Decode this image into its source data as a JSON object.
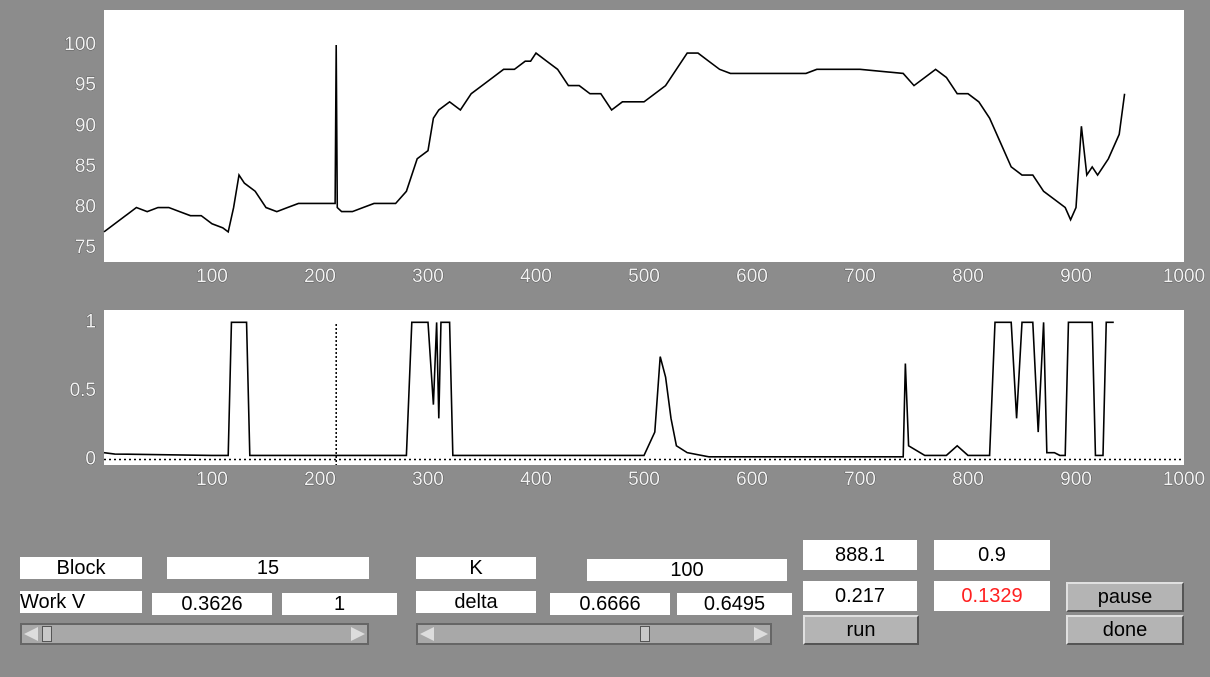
{
  "chart_data": [
    {
      "type": "line",
      "x": [
        0,
        10,
        20,
        30,
        40,
        50,
        60,
        70,
        80,
        90,
        100,
        110,
        115,
        120,
        125,
        130,
        140,
        150,
        160,
        170,
        180,
        190,
        200,
        210,
        214,
        215,
        216,
        220,
        230,
        240,
        250,
        260,
        270,
        280,
        290,
        300,
        305,
        310,
        320,
        330,
        340,
        350,
        360,
        370,
        380,
        390,
        395,
        400,
        410,
        420,
        430,
        440,
        450,
        460,
        470,
        480,
        490,
        500,
        510,
        520,
        530,
        540,
        550,
        560,
        570,
        580,
        600,
        650,
        660,
        700,
        740,
        750,
        760,
        770,
        780,
        790,
        800,
        810,
        820,
        830,
        840,
        850,
        860,
        870,
        880,
        890,
        895,
        900,
        905,
        910,
        915,
        920,
        925,
        930,
        940,
        945
      ],
      "values": [
        77,
        78,
        79,
        80,
        79.5,
        80,
        80,
        79.5,
        79,
        79,
        78,
        77.5,
        77,
        80,
        84,
        83,
        82,
        80,
        79.5,
        80,
        80.5,
        80.5,
        80.5,
        80.5,
        80.5,
        100,
        80,
        79.5,
        79.5,
        80,
        80.5,
        80.5,
        80.5,
        82,
        86,
        87,
        91,
        92,
        93,
        92,
        94,
        95,
        96,
        97,
        97,
        98,
        98,
        99,
        98,
        97,
        95,
        95,
        94,
        94,
        92,
        93,
        93,
        93,
        94,
        95,
        97,
        99,
        99,
        98,
        97,
        96.5,
        96.5,
        96.5,
        97,
        97,
        96.5,
        95,
        96,
        97,
        96,
        94,
        94,
        93,
        91,
        88,
        85,
        84,
        84,
        82,
        81,
        80,
        78.5,
        80,
        90,
        84,
        85,
        84,
        85,
        86,
        89,
        94
      ],
      "color": "#000000",
      "xlim": [
        0,
        1000
      ],
      "ylim": [
        73.3,
        104.3
      ],
      "xticks": [
        100,
        200,
        300,
        400,
        500,
        600,
        700,
        800,
        900,
        1000
      ],
      "yticks": [
        75,
        80,
        85,
        90,
        95,
        100
      ]
    },
    {
      "type": "line",
      "x": [
        0,
        10,
        100,
        115,
        118,
        132,
        135,
        280,
        285,
        300,
        305,
        308,
        310,
        312,
        320,
        323,
        350,
        500,
        510,
        515,
        520,
        525,
        530,
        540,
        560,
        740,
        742,
        745,
        760,
        780,
        790,
        800,
        820,
        825,
        840,
        845,
        850,
        860,
        865,
        870,
        873,
        880,
        885,
        890,
        893,
        915,
        918,
        925,
        928,
        935
      ],
      "values": [
        0.05,
        0.04,
        0.03,
        0.03,
        1,
        1,
        0.03,
        0.03,
        1,
        1,
        0.4,
        1,
        0.3,
        1,
        1,
        0.03,
        0.03,
        0.03,
        0.2,
        0.75,
        0.6,
        0.3,
        0.1,
        0.05,
        0.02,
        0.02,
        0.7,
        0.1,
        0.03,
        0.03,
        0.1,
        0.03,
        0.03,
        1,
        1,
        0.3,
        1,
        1,
        0.2,
        1,
        0.05,
        0.05,
        0.03,
        0.03,
        1,
        1,
        0.03,
        0.03,
        1,
        1
      ],
      "color": "#000000",
      "marker_x": 215,
      "xlim": [
        0,
        1000
      ],
      "ylim": [
        -0.04,
        1.09
      ],
      "xticks": [
        100,
        200,
        300,
        400,
        500,
        600,
        700,
        800,
        900,
        1000
      ],
      "yticks": [
        0,
        0.5,
        1
      ]
    }
  ],
  "controls": {
    "block": {
      "label": "Block",
      "value": "15"
    },
    "work_v": {
      "label": "Work V",
      "values": [
        "0.3626",
        "1"
      ]
    },
    "k": {
      "label": "K",
      "value": "100"
    },
    "delta": {
      "label": "delta",
      "values": [
        "0.6666",
        "0.6495"
      ]
    },
    "readouts": [
      "888.1",
      "0.9",
      "0.217",
      "0.1329"
    ],
    "buttons": {
      "run": "run",
      "pause": "pause",
      "done": "done"
    }
  }
}
